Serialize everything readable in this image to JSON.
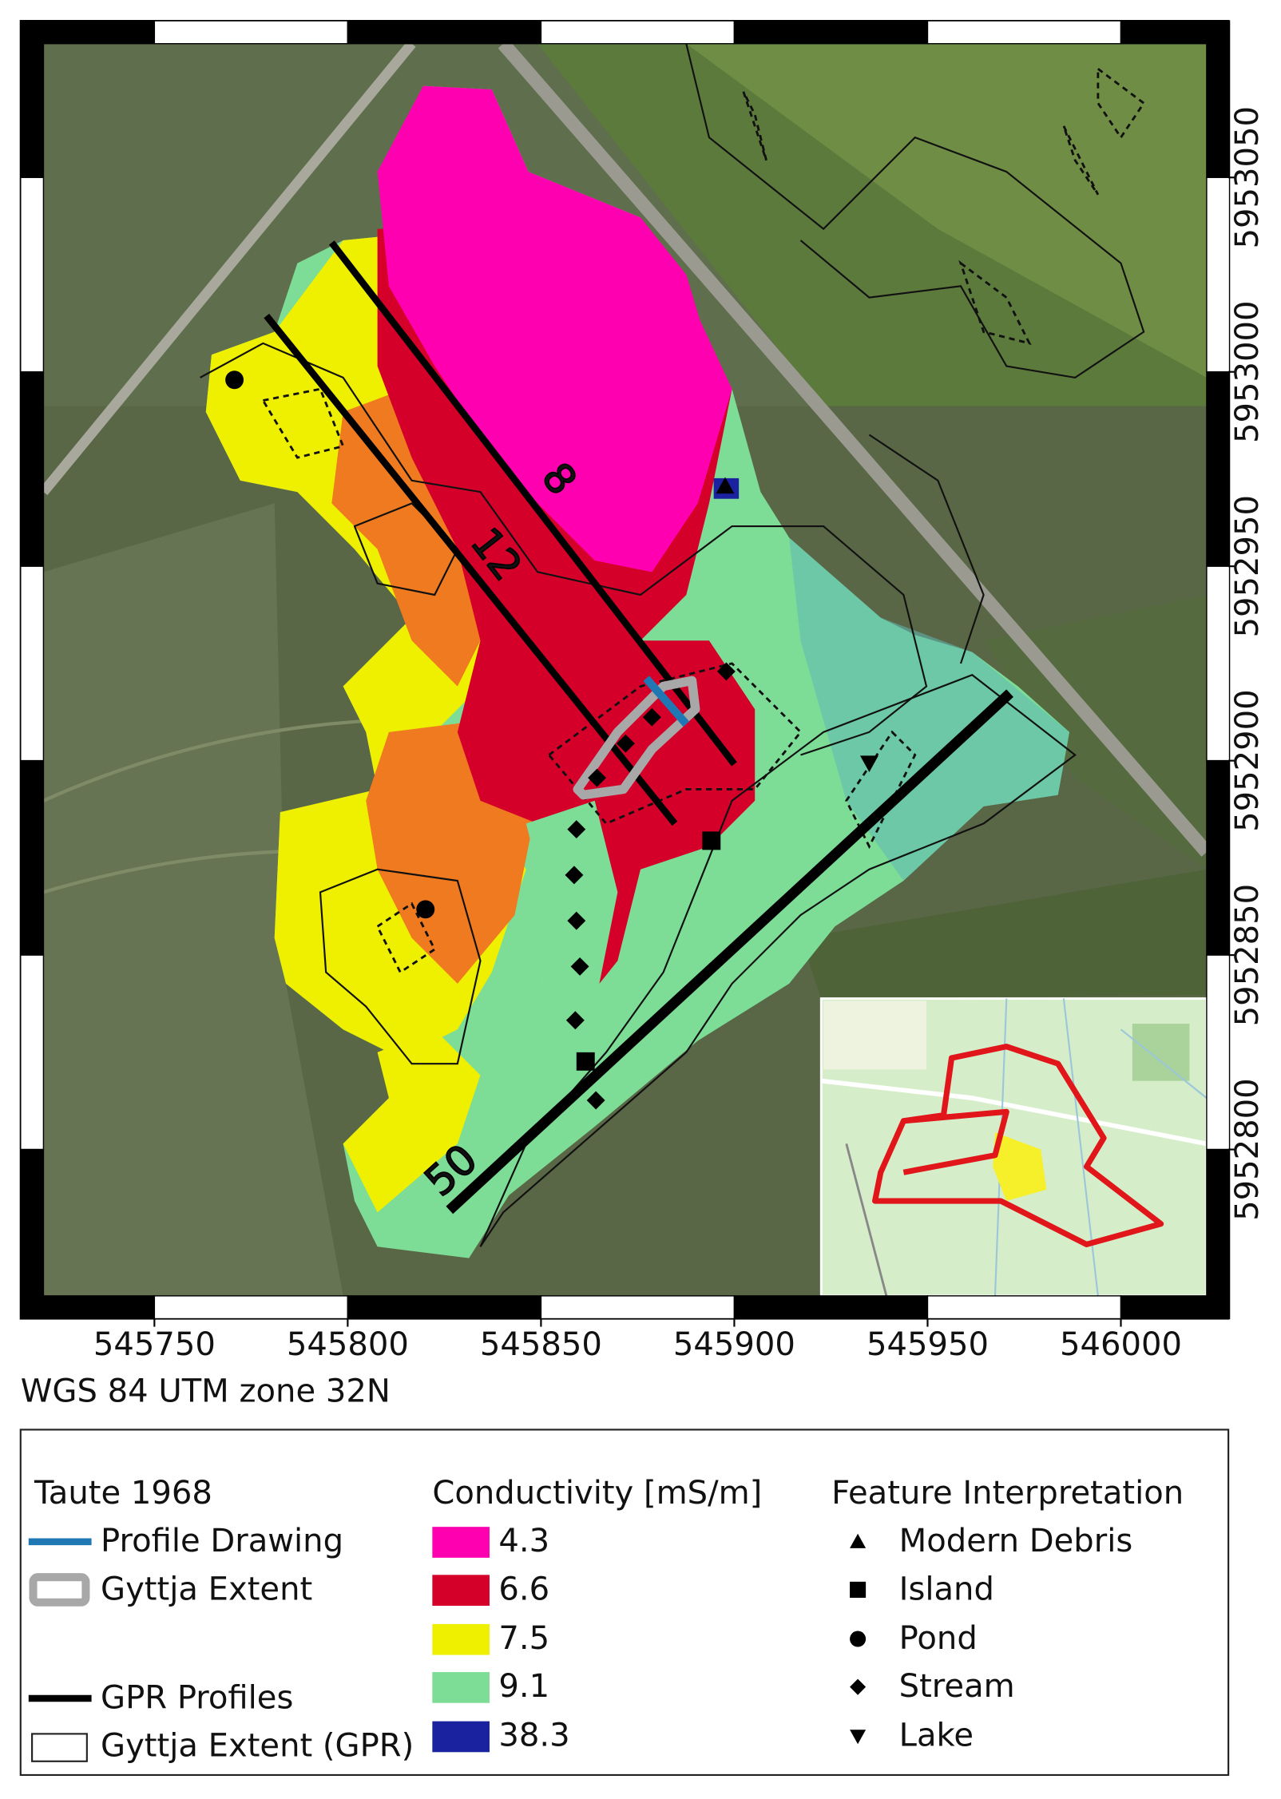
{
  "map": {
    "crs": "WGS 84 UTM zone 32N",
    "x_ticks": [
      545750,
      545800,
      545850,
      545900,
      545950,
      546000
    ],
    "y_ticks": [
      5952800,
      5952850,
      5952900,
      5952950,
      5953000,
      5953050
    ],
    "profile_labels": [
      "8",
      "12",
      "50"
    ]
  },
  "legend": {
    "taute": {
      "title": "Taute 1968",
      "items": [
        "Profile Drawing",
        "Gyttja Extent"
      ]
    },
    "gpr": {
      "items": [
        "GPR Profiles",
        "Gyttja Extent (GPR)"
      ]
    },
    "conductivity": {
      "title": "Conductivity [mS/m]",
      "items": [
        {
          "label": 4.3,
          "color": "#ff00b0"
        },
        {
          "label": 6.6,
          "color": "#d4002a"
        },
        {
          "label": 7.5,
          "color": "#eef000"
        },
        {
          "label": 9.1,
          "color": "#7ddc96"
        },
        {
          "label": 38.3,
          "color": "#1a22a0"
        }
      ]
    },
    "features": {
      "title": "Feature Interpretation",
      "items": [
        "Modern Debris",
        "Island",
        "Pond",
        "Stream",
        "Lake"
      ]
    }
  }
}
